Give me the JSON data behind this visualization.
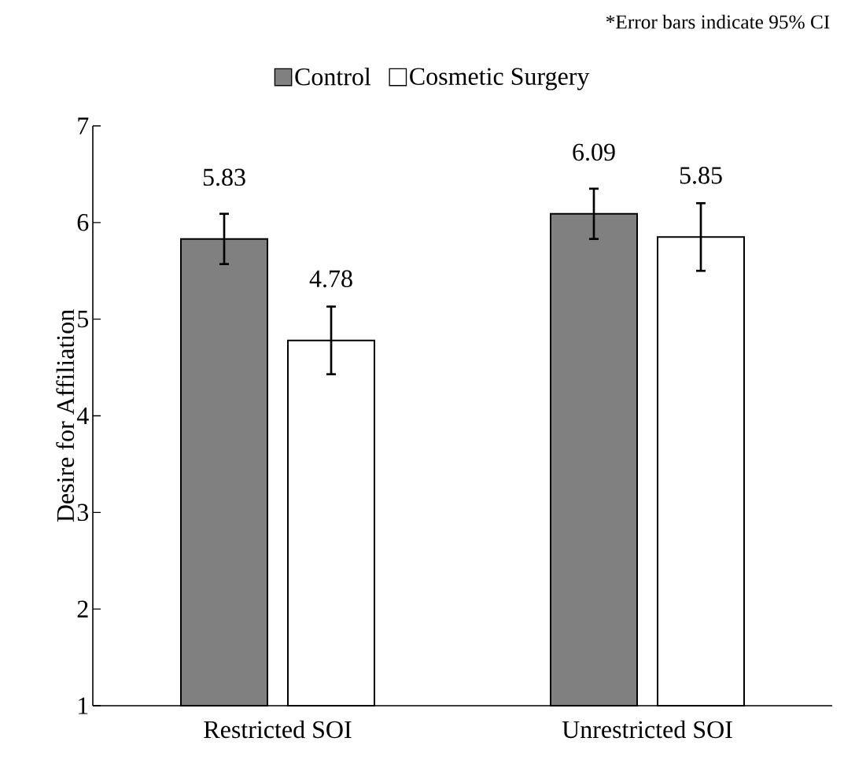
{
  "chart_data": {
    "type": "bar",
    "annotations": [
      "*Error bars indicate 95% CI"
    ],
    "ylabel": "Desire for Affiliation",
    "categories": [
      "Restricted SOI",
      "Unrestricted SOI"
    ],
    "series": [
      {
        "name": "Control",
        "color": "#808080",
        "values": [
          5.83,
          6.09
        ],
        "errors": [
          0.26,
          0.26
        ]
      },
      {
        "name": "Cosmetic Surgery",
        "color": "#ffffff",
        "values": [
          4.78,
          5.85
        ],
        "errors": [
          0.35,
          0.35
        ]
      }
    ],
    "ylim": [
      1,
      7
    ],
    "yticks": [
      1,
      2,
      3,
      4,
      5,
      6,
      7
    ],
    "data_labels": true,
    "grid": false,
    "legend": "top"
  }
}
